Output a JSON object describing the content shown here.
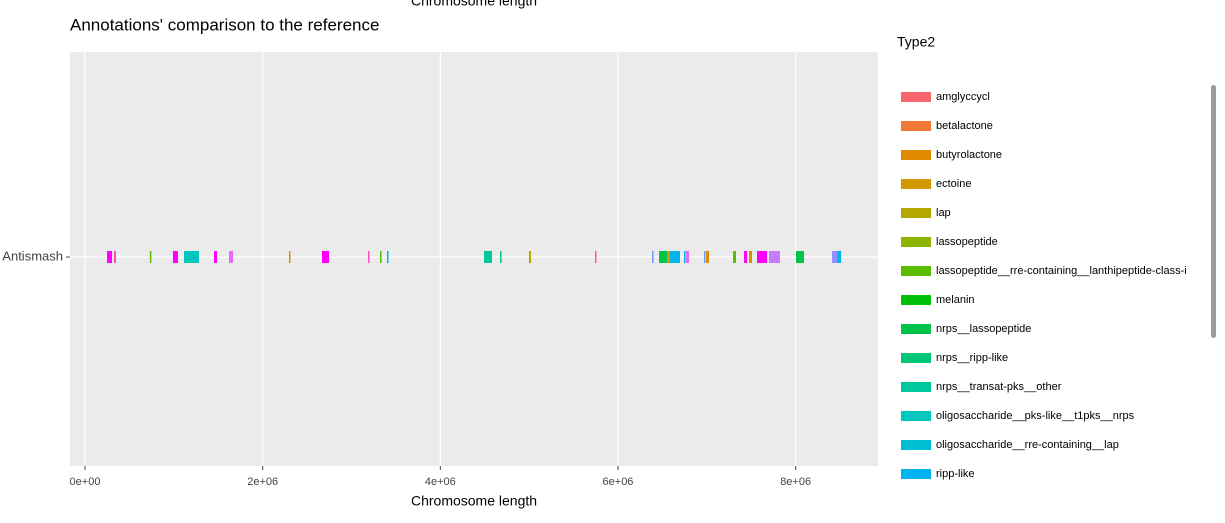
{
  "chart_data": {
    "type": "segments",
    "title": "Annotations' comparison to the reference",
    "xlabel": "Chromosome length",
    "categories": [
      "Antismash"
    ],
    "xlim": [
      -169000,
      8927000
    ],
    "xticks": [
      {
        "value": 0,
        "label": "0e+00"
      },
      {
        "value": 2000000,
        "label": "2e+06"
      },
      {
        "value": 4000000,
        "label": "4e+06"
      },
      {
        "value": 6000000,
        "label": "6e+06"
      },
      {
        "value": 8000000,
        "label": "8e+06"
      }
    ],
    "grid": true,
    "legend_title": "Type2",
    "legend": [
      {
        "name": "amglyccycl",
        "color": "#f8666d"
      },
      {
        "name": "betalactone",
        "color": "#f07a35"
      },
      {
        "name": "butyrolactone",
        "color": "#e38900"
      },
      {
        "name": "ectoine",
        "color": "#d09a00"
      },
      {
        "name": "lap",
        "color": "#b3a700"
      },
      {
        "name": "lassopeptide",
        "color": "#8db500"
      },
      {
        "name": "lassopeptide__rre-containing__lanthipeptide-class-i",
        "color": "#5abd00"
      },
      {
        "name": "melanin",
        "color": "#00c00a"
      },
      {
        "name": "nrps__lassopeptide",
        "color": "#00c34a"
      },
      {
        "name": "nrps__ripp-like",
        "color": "#00c678"
      },
      {
        "name": "nrps__transat-pks__other",
        "color": "#00c89c"
      },
      {
        "name": "oligosaccharide__pks-like__t1pks__nrps",
        "color": "#00c6bd"
      },
      {
        "name": "oligosaccharide__rre-containing__lap",
        "color": "#00bfd4"
      },
      {
        "name": "ripp-like",
        "color": "#00b3ef"
      }
    ],
    "segments": [
      {
        "start": 248000,
        "end": 304000,
        "color": "#ff00ff"
      },
      {
        "start": 326000,
        "end": 349000,
        "color": "#ff4fb8"
      },
      {
        "start": 730000,
        "end": 743000,
        "color": "#5abd00"
      },
      {
        "start": 990000,
        "end": 1047000,
        "color": "#ff00ff"
      },
      {
        "start": 1115000,
        "end": 1283000,
        "color": "#00c6bd"
      },
      {
        "start": 1452000,
        "end": 1486000,
        "color": "#ff00ff"
      },
      {
        "start": 1621000,
        "end": 1666000,
        "color": "#e76bf3"
      },
      {
        "start": 2296000,
        "end": 2308000,
        "color": "#e38900"
      },
      {
        "start": 2668000,
        "end": 2747000,
        "color": "#ff00ff"
      },
      {
        "start": 3186000,
        "end": 3197000,
        "color": "#ff4fb8"
      },
      {
        "start": 3321000,
        "end": 3332000,
        "color": "#5abd00"
      },
      {
        "start": 3400000,
        "end": 3411000,
        "color": "#00b3ef"
      },
      {
        "start": 4492000,
        "end": 4582000,
        "color": "#00c89c"
      },
      {
        "start": 4672000,
        "end": 4683000,
        "color": "#00c678"
      },
      {
        "start": 4998000,
        "end": 5021000,
        "color": "#b3a700"
      },
      {
        "start": 5741000,
        "end": 5753000,
        "color": "#ff4fb8"
      },
      {
        "start": 6383000,
        "end": 6394000,
        "color": "#6b9bff"
      },
      {
        "start": 6462000,
        "end": 6552000,
        "color": "#00c34a"
      },
      {
        "start": 6552000,
        "end": 6586000,
        "color": "#d09a00"
      },
      {
        "start": 6586000,
        "end": 6698000,
        "color": "#00b3ef"
      },
      {
        "start": 6743000,
        "end": 6755000,
        "color": "#00b3ef"
      },
      {
        "start": 6766000,
        "end": 6800000,
        "color": "#e76bf3"
      },
      {
        "start": 6968000,
        "end": 6980000,
        "color": "#6b9bff"
      },
      {
        "start": 6991000,
        "end": 7025000,
        "color": "#e38900"
      },
      {
        "start": 7295000,
        "end": 7329000,
        "color": "#5abd00"
      },
      {
        "start": 7419000,
        "end": 7453000,
        "color": "#ff00ff"
      },
      {
        "start": 7475000,
        "end": 7509000,
        "color": "#e38900"
      },
      {
        "start": 7565000,
        "end": 7678000,
        "color": "#ff00ff"
      },
      {
        "start": 7700000,
        "end": 7824000,
        "color": "#c77cff"
      },
      {
        "start": 8004000,
        "end": 8094000,
        "color": "#00c34a"
      },
      {
        "start": 8409000,
        "end": 8466000,
        "color": "#9590ff"
      },
      {
        "start": 8466000,
        "end": 8511000,
        "color": "#00b3ef"
      }
    ]
  }
}
